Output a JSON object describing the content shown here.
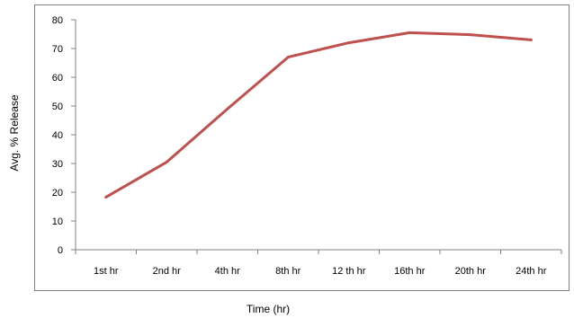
{
  "chart_data": {
    "type": "line",
    "title": "",
    "xlabel": "Time (hr)",
    "ylabel": "Avg. % Release",
    "categories": [
      "1st hr",
      "2nd hr",
      "4th hr",
      "8th hr",
      "12 th hr",
      "16th hr",
      "20th hr",
      "24th hr"
    ],
    "series": [
      {
        "values": [
          18.3,
          30.5,
          49.0,
          67.0,
          72.0,
          75.5,
          74.8,
          73.0
        ],
        "color": "#C0504D"
      }
    ],
    "ylim": [
      0,
      80
    ],
    "yticks": [
      "0",
      "10",
      "20",
      "30",
      "40",
      "50",
      "60",
      "70",
      "80"
    ],
    "grid": false,
    "legend": "none"
  }
}
